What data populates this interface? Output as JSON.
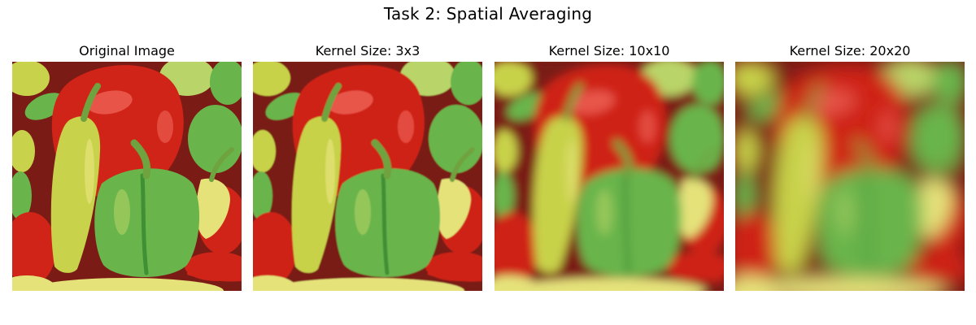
{
  "figure": {
    "title": "Task 2: Spatial Averaging"
  },
  "panels": [
    {
      "title": "Original Image",
      "kernel_size": 0
    },
    {
      "title": "Kernel Size: 3x3",
      "kernel_size": 3
    },
    {
      "title": "Kernel Size: 10x10",
      "kernel_size": 10
    },
    {
      "title": "Kernel Size: 20x20",
      "kernel_size": 20
    }
  ],
  "image": {
    "subject": "peppers",
    "colors": {
      "background": "#7a1b16",
      "red_pepper": "#cf2417",
      "red_pepper_highlight": "#f0655a",
      "green_pepper": "#69b54b",
      "green_pepper_dark": "#3f8f35",
      "yellow_pepper": "#c8d24a",
      "yellow_pepper_light": "#e5e27a",
      "light_green": "#b9d468",
      "stem_green": "#6fa340"
    }
  }
}
